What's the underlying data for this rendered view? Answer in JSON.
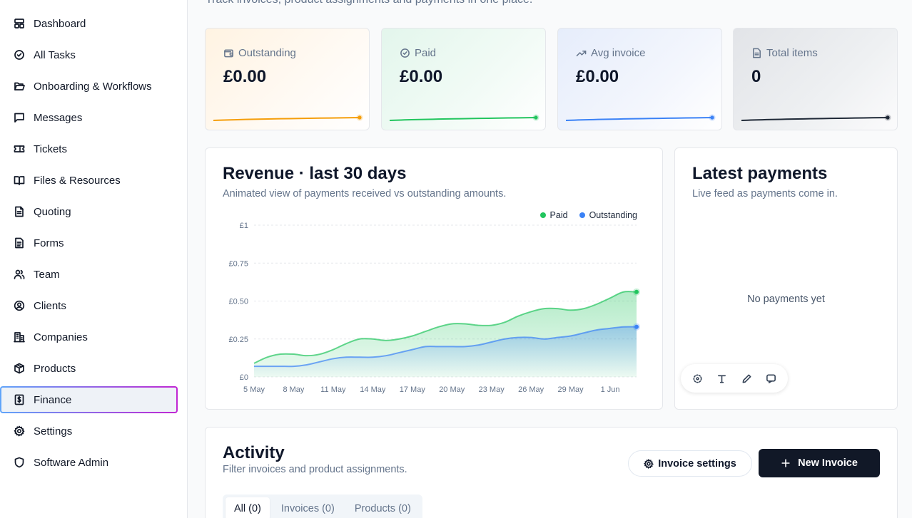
{
  "sidebar": {
    "items": [
      {
        "label": "Dashboard",
        "icon": "dashboard-icon"
      },
      {
        "label": "All Tasks",
        "icon": "check-circle-icon"
      },
      {
        "label": "Onboarding & Workflows",
        "icon": "folder-open-icon"
      },
      {
        "label": "Messages",
        "icon": "message-square-icon"
      },
      {
        "label": "Tickets",
        "icon": "ticket-icon"
      },
      {
        "label": "Files & Resources",
        "icon": "book-open-icon"
      },
      {
        "label": "Quoting",
        "icon": "file-text-icon"
      },
      {
        "label": "Forms",
        "icon": "file-lines-icon"
      },
      {
        "label": "Team",
        "icon": "users-icon"
      },
      {
        "label": "Clients",
        "icon": "user-circle-icon"
      },
      {
        "label": "Companies",
        "icon": "building-icon"
      },
      {
        "label": "Products",
        "icon": "package-icon"
      },
      {
        "label": "Finance",
        "icon": "receipt-icon",
        "active": true
      },
      {
        "label": "Settings",
        "icon": "gear-icon"
      },
      {
        "label": "Software Admin",
        "icon": "shield-icon"
      }
    ]
  },
  "header": {
    "subtitle": "Track invoices, product assignments and payments in one place."
  },
  "stats": [
    {
      "label": "Outstanding",
      "value": "£0.00",
      "color": "#f59e0b",
      "icon": "wallet-icon"
    },
    {
      "label": "Paid",
      "value": "£0.00",
      "color": "#22c55e",
      "icon": "check-circle-icon"
    },
    {
      "label": "Avg invoice",
      "value": "£0.00",
      "color": "#3b82f6",
      "icon": "trending-up-icon"
    },
    {
      "label": "Total items",
      "value": "0",
      "color": "#1f2937",
      "icon": "file-icon"
    }
  ],
  "revenue": {
    "title": "Revenue · last 30 days",
    "subtitle": "Animated view of payments received vs outstanding amounts.",
    "legend": {
      "paid": "Paid",
      "outstanding": "Outstanding"
    },
    "y_ticks": [
      "£1",
      "£0.75",
      "£0.50",
      "£0.25",
      "£0"
    ],
    "x_ticks": [
      "5 May",
      "8 May",
      "11 May",
      "14 May",
      "17 May",
      "20 May",
      "23 May",
      "26 May",
      "29 May",
      "1 Jun"
    ]
  },
  "chart_data": {
    "type": "area",
    "x": [
      "5 May",
      "6 May",
      "7 May",
      "8 May",
      "9 May",
      "10 May",
      "11 May",
      "12 May",
      "13 May",
      "14 May",
      "15 May",
      "16 May",
      "17 May",
      "18 May",
      "19 May",
      "20 May",
      "21 May",
      "22 May",
      "23 May",
      "24 May",
      "25 May",
      "26 May",
      "27 May",
      "28 May",
      "29 May",
      "30 May",
      "31 May",
      "1 Jun",
      "2 Jun",
      "3 Jun"
    ],
    "series": [
      {
        "name": "Paid",
        "color": "#22c55e",
        "values": [
          0.09,
          0.13,
          0.15,
          0.15,
          0.14,
          0.15,
          0.18,
          0.22,
          0.25,
          0.25,
          0.24,
          0.25,
          0.27,
          0.3,
          0.33,
          0.35,
          0.35,
          0.34,
          0.34,
          0.36,
          0.4,
          0.43,
          0.45,
          0.45,
          0.44,
          0.45,
          0.48,
          0.52,
          0.56,
          0.56
        ]
      },
      {
        "name": "Outstanding",
        "color": "#3b82f6",
        "values": [
          0.07,
          0.07,
          0.07,
          0.07,
          0.08,
          0.1,
          0.12,
          0.13,
          0.13,
          0.13,
          0.14,
          0.16,
          0.18,
          0.2,
          0.2,
          0.2,
          0.2,
          0.21,
          0.23,
          0.25,
          0.26,
          0.26,
          0.25,
          0.26,
          0.27,
          0.29,
          0.31,
          0.32,
          0.33,
          0.33
        ]
      }
    ],
    "ylim": [
      0,
      1
    ],
    "grid": true,
    "legend_position": "top-right"
  },
  "payments": {
    "title": "Latest payments",
    "subtitle": "Live feed as payments come in.",
    "empty": "No payments yet"
  },
  "activity": {
    "title": "Activity",
    "subtitle": "Filter invoices and product assignments.",
    "settings_label": "Invoice settings",
    "new_label": "New Invoice",
    "tabs": [
      {
        "label": "All (0)",
        "active": true
      },
      {
        "label": "Invoices (0)"
      },
      {
        "label": "Products (0)"
      }
    ]
  }
}
